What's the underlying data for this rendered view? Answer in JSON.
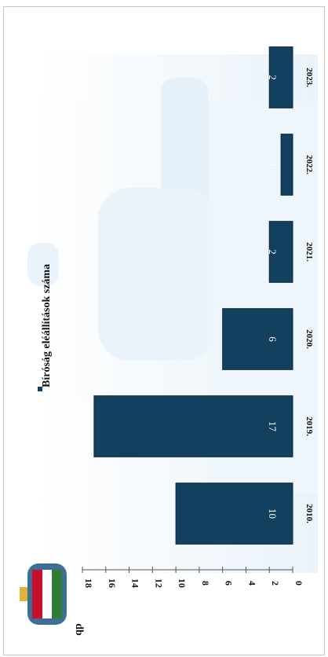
{
  "chart_data": {
    "type": "bar",
    "orientation": "rotated-90-clockwise",
    "categories": [
      "2010.",
      "2019.",
      "2020.",
      "2021.",
      "2022.",
      "2023."
    ],
    "series": [
      {
        "name": "Bíróság eléállítások száma",
        "values": [
          10,
          17,
          6,
          2,
          1,
          2
        ]
      }
    ],
    "data_labels": [
      "10",
      "17",
      "6",
      "2",
      "1",
      "2"
    ],
    "ylabel": "db",
    "yticks": [
      0,
      2,
      4,
      6,
      8,
      10,
      12,
      14,
      16,
      18
    ],
    "ylim": [
      0,
      18
    ],
    "legend_position": "top",
    "grid": false,
    "colors": {
      "bar": "#13405f",
      "bar_edge": "#0b2a40",
      "background_image": "#cfe3f1"
    }
  }
}
